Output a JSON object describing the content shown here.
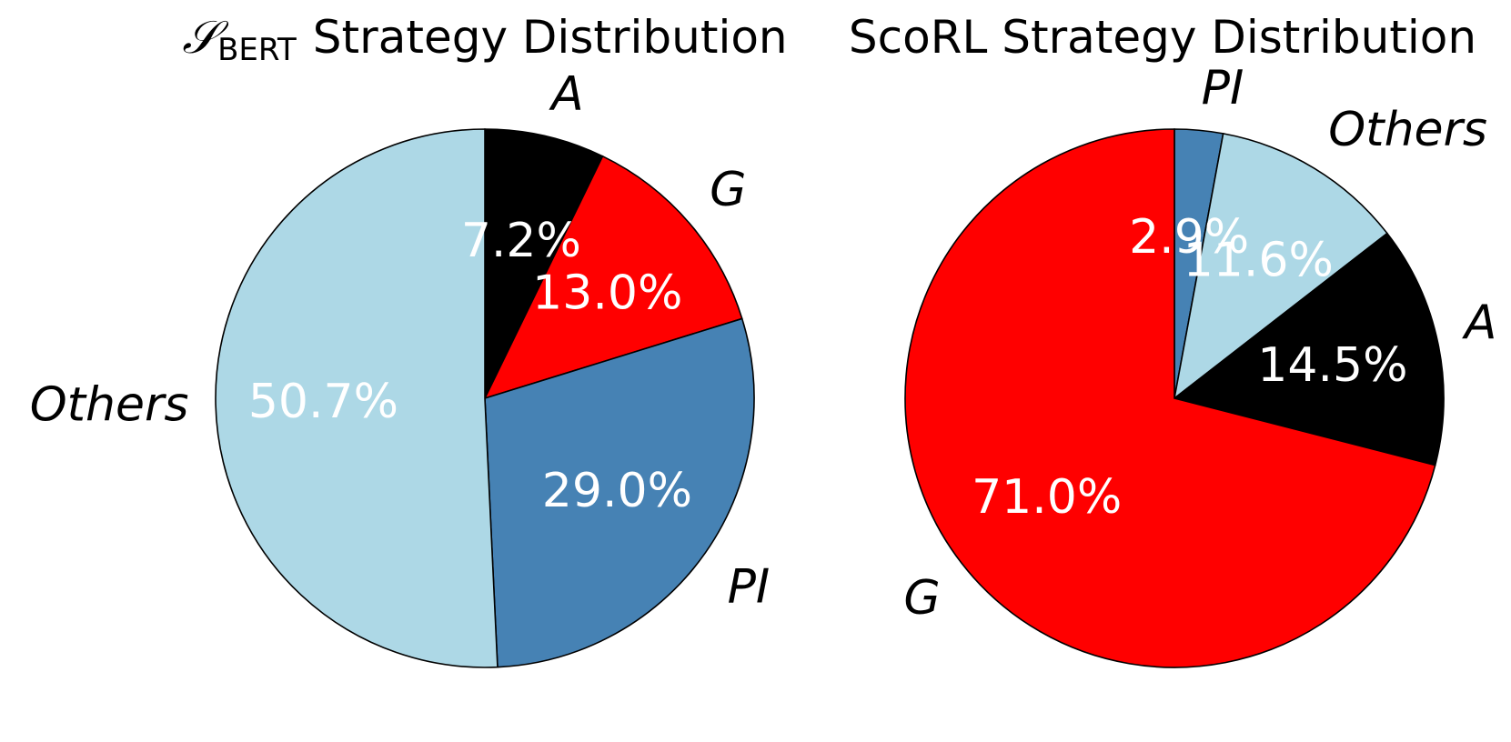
{
  "chart_data": [
    {
      "type": "pie",
      "title": {
        "math_symbol": "𝒮",
        "subscript": "BERT",
        "text": "Strategy Distribution"
      },
      "start_angle_deg": 90,
      "direction": "clockwise",
      "slices": [
        {
          "label": "A",
          "value": 7.2,
          "pct_label": "7.2%",
          "color": "#000000"
        },
        {
          "label": "G",
          "value": 13.0,
          "pct_label": "13.0%",
          "color": "#ff0000"
        },
        {
          "label": "PI",
          "value": 29.0,
          "pct_label": "29.0%",
          "color": "#4682b4"
        },
        {
          "label": "Others",
          "value": 50.7,
          "pct_label": "50.7%",
          "color": "#add8e6"
        }
      ]
    },
    {
      "type": "pie",
      "title": {
        "math_symbol": "",
        "subscript": "",
        "text": "ScoRL Strategy Distribution"
      },
      "start_angle_deg": 90,
      "direction": "clockwise",
      "slices": [
        {
          "label": "PI",
          "value": 2.9,
          "pct_label": "2.9%",
          "color": "#4682b4"
        },
        {
          "label": "Others",
          "value": 11.6,
          "pct_label": "11.6%",
          "color": "#add8e6"
        },
        {
          "label": "A",
          "value": 14.5,
          "pct_label": "14.5%",
          "color": "#000000"
        },
        {
          "label": "G",
          "value": 71.0,
          "pct_label": "71.0%",
          "color": "#ff0000"
        }
      ]
    }
  ]
}
